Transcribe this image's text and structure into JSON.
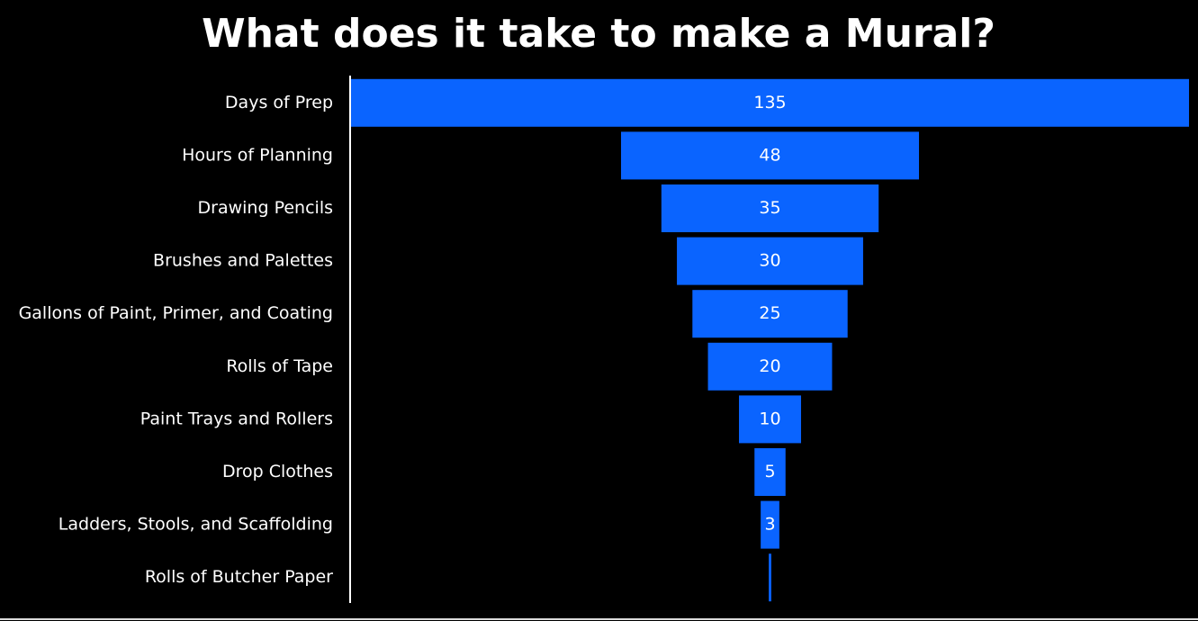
{
  "chart_data": {
    "type": "funnel",
    "title": "What does it take to make a Mural?",
    "categories": [
      "Days of Prep",
      "Hours of Planning",
      "Drawing Pencils",
      "Brushes and Palettes",
      "Gallons of Paint, Primer, and Coating",
      "Rolls of Tape",
      "Paint Trays and Rollers",
      "Drop Clothes",
      "Ladders, Stools, and Scaffolding",
      "Rolls of Butcher Paper"
    ],
    "values": [
      135,
      48,
      35,
      30,
      25,
      20,
      10,
      5,
      3,
      0.4
    ],
    "value_labels": [
      "135",
      "48",
      "35",
      "30",
      "25",
      "20",
      "10",
      "5",
      "3",
      null
    ],
    "color": "#0a64ff",
    "xlim": [
      0,
      135
    ]
  }
}
